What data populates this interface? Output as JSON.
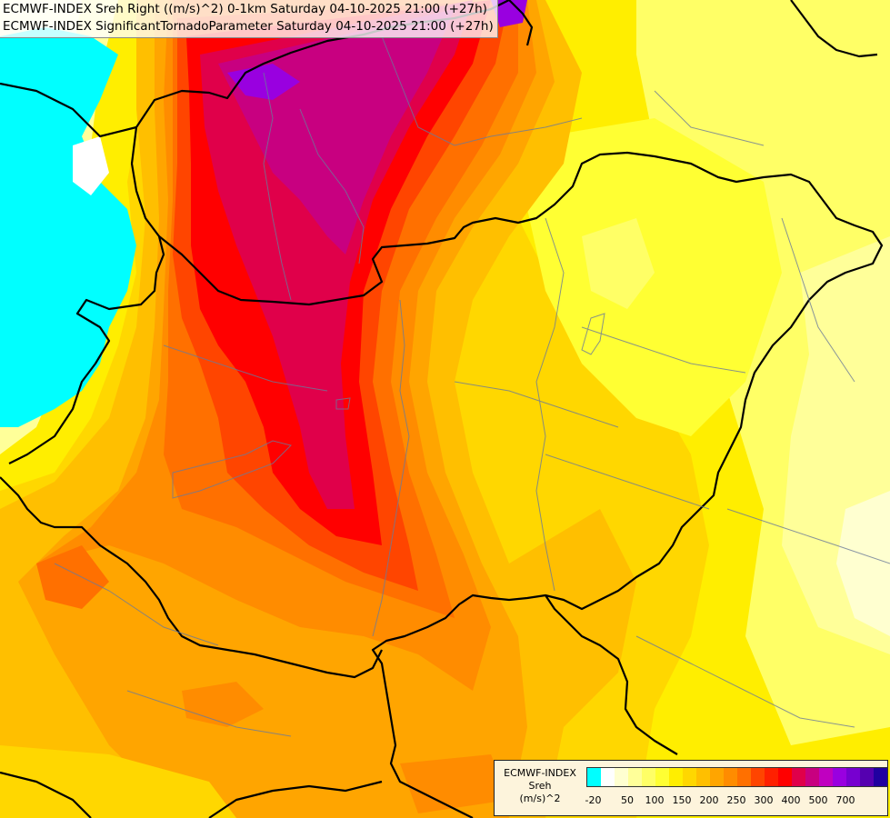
{
  "titles": {
    "line1": "ECMWF-INDEX Sreh Right ((m/s)^2) 0-1km Saturday 04-10-2025 21:00 (+27h)",
    "line2": "ECMWF-INDEX SignificantTornadoParameter Saturday 04-10-2025 21:00 (+27h)"
  },
  "legend": {
    "title_line1": "ECMWF-INDEX",
    "title_line2": "Sreh",
    "title_line3": "(m/s)^2",
    "swatch_colors": [
      "#00ffff",
      "#ffffff",
      "#ffffd0",
      "#ffff99",
      "#ffff66",
      "#ffff33",
      "#ffee00",
      "#ffd700",
      "#ffbf00",
      "#ffa500",
      "#ff8c00",
      "#ff7000",
      "#ff4500",
      "#ff2000",
      "#ff0000",
      "#e0004a",
      "#c80080",
      "#c000c0",
      "#9900e0",
      "#7700d0",
      "#5500b0",
      "#2000a0"
    ],
    "ticks": [
      {
        "label": "-20",
        "index": 0.5
      },
      {
        "label": "50",
        "index": 3
      },
      {
        "label": "100",
        "index": 5
      },
      {
        "label": "150",
        "index": 7
      },
      {
        "label": "200",
        "index": 9
      },
      {
        "label": "250",
        "index": 11
      },
      {
        "label": "300",
        "index": 13
      },
      {
        "label": "400",
        "index": 15
      },
      {
        "label": "500",
        "index": 17
      },
      {
        "label": "700",
        "index": 19
      }
    ]
  }
}
